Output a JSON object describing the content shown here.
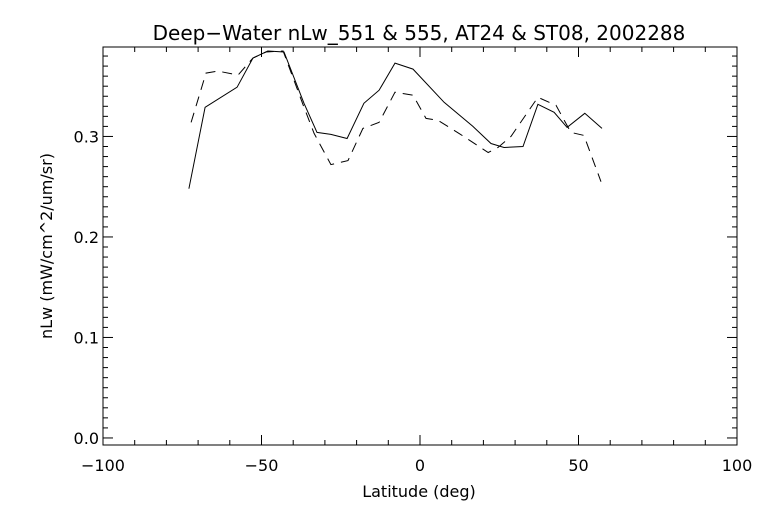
{
  "chart_data": {
    "type": "line",
    "title": "Deep−Water nLw_551 & 555, AT24 & ST08, 2002288",
    "xlabel": "Latitude (deg)",
    "ylabel": "nLw (mW/cm^2/um/sr)",
    "xlim": [
      -100,
      100
    ],
    "ylim": [
      -0.007,
      0.389
    ],
    "xticks": [
      -100,
      -50,
      0,
      50,
      100
    ],
    "xtick_labels": [
      "−100",
      "−50",
      "0",
      "50",
      "100"
    ],
    "yticks": [
      0.0,
      0.1,
      0.2,
      0.3
    ],
    "ytick_labels": [
      "0.0",
      "0.1",
      "0.2",
      "0.3"
    ],
    "x_minor_step": 10,
    "y_minor_step": 0.01,
    "grid": false,
    "colors": {
      "line": "#000000",
      "background": "#ffffff"
    },
    "series": [
      {
        "name": "solid",
        "style": "solid",
        "x": [
          -72.9,
          -67.8,
          -57.7,
          -52.7,
          -48.0,
          -42.9,
          -36.6,
          -32.5,
          -28.1,
          -23.0,
          -17.7,
          -12.9,
          -7.9,
          -2.2,
          7.6,
          16.7,
          22.4,
          26.5,
          32.5,
          37.2,
          42.3,
          46.4,
          52.0,
          57.4
        ],
        "y": [
          0.248,
          0.329,
          0.349,
          0.378,
          0.385,
          0.384,
          0.333,
          0.304,
          0.302,
          0.298,
          0.333,
          0.346,
          0.373,
          0.367,
          0.334,
          0.31,
          0.293,
          0.289,
          0.29,
          0.332,
          0.324,
          0.309,
          0.323,
          0.308
        ]
      },
      {
        "name": "dashed",
        "style": "dashed",
        "x": [
          -72.2,
          -67.5,
          -63.7,
          -57.4,
          -52.7,
          -48.6,
          -43.2,
          -36.6,
          -33.4,
          -28.1,
          -22.7,
          -18.0,
          -12.9,
          -7.9,
          -2.2,
          1.9,
          5.7,
          12.3,
          21.5,
          24.6,
          28.7,
          37.2,
          42.9,
          47.6,
          51.7,
          57.1
        ],
        "y": [
          0.314,
          0.363,
          0.365,
          0.361,
          0.378,
          0.384,
          0.385,
          0.329,
          0.303,
          0.272,
          0.276,
          0.308,
          0.314,
          0.344,
          0.341,
          0.318,
          0.316,
          0.303,
          0.284,
          0.289,
          0.3,
          0.339,
          0.331,
          0.304,
          0.301,
          0.255
        ]
      }
    ]
  }
}
